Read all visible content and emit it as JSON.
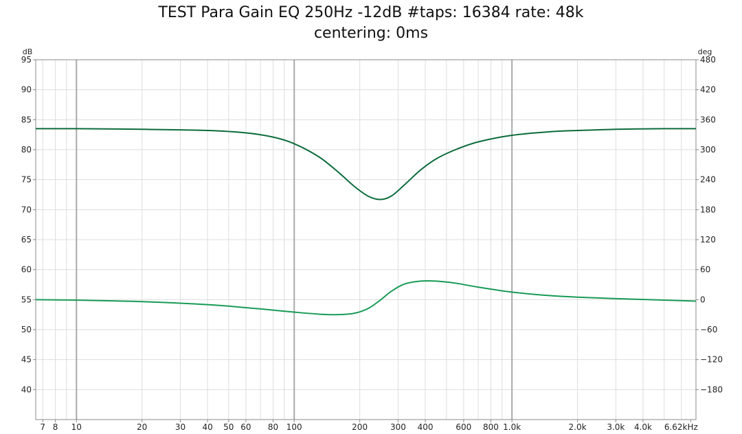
{
  "chart_data": {
    "type": "line",
    "title": "TEST Para Gain EQ 250Hz -12dB #taps: 16384 rate: 48k",
    "subtitle": "centering: 0ms",
    "x_scale": "log",
    "xlim": [
      6.5,
      7000
    ],
    "x_ticks": [
      {
        "v": 7,
        "label": "7"
      },
      {
        "v": 8,
        "label": "8"
      },
      {
        "v": 10,
        "label": "10"
      },
      {
        "v": 20,
        "label": "20"
      },
      {
        "v": 30,
        "label": "30"
      },
      {
        "v": 40,
        "label": "40"
      },
      {
        "v": 50,
        "label": "50"
      },
      {
        "v": 60,
        "label": "60"
      },
      {
        "v": 80,
        "label": "80"
      },
      {
        "v": 100,
        "label": "100"
      },
      {
        "v": 200,
        "label": "200"
      },
      {
        "v": 300,
        "label": "300"
      },
      {
        "v": 400,
        "label": "400"
      },
      {
        "v": 600,
        "label": "600"
      },
      {
        "v": 800,
        "label": "800"
      },
      {
        "v": 1000,
        "label": "1.0k"
      },
      {
        "v": 2000,
        "label": "2.0k"
      },
      {
        "v": 3000,
        "label": "3.0k"
      },
      {
        "v": 4000,
        "label": "4.0k"
      },
      {
        "v": 6620,
        "label": "6.62kHz"
      }
    ],
    "left_axis": {
      "unit": "dB",
      "range": [
        35,
        95
      ],
      "ticks": [
        95,
        90,
        85,
        80,
        75,
        70,
        65,
        60,
        55,
        50,
        45,
        40
      ]
    },
    "right_axis": {
      "unit": "deg",
      "range": [
        -240,
        480
      ],
      "ticks": [
        {
          "v": 480,
          "label": "480"
        },
        {
          "v": 420,
          "label": "420"
        },
        {
          "v": 360,
          "label": "360"
        },
        {
          "v": 300,
          "label": "300"
        },
        {
          "v": 240,
          "label": "240"
        },
        {
          "v": 180,
          "label": "180"
        },
        {
          "v": 120,
          "label": "120"
        },
        {
          "v": 60,
          "label": "60"
        },
        {
          "v": 0,
          "label": "0"
        },
        {
          "v": -60,
          "label": "−60"
        },
        {
          "v": -120,
          "label": "−120"
        },
        {
          "v": -180,
          "label": "−180"
        }
      ]
    },
    "grid": true,
    "series": [
      {
        "axis": "left",
        "color": "#0b6b3a",
        "x": [
          6.5,
          10,
          20,
          40,
          60,
          80,
          100,
          130,
          160,
          190,
          220,
          250,
          280,
          320,
          380,
          450,
          550,
          700,
          1000,
          1500,
          2000,
          3000,
          5000,
          7000
        ],
        "y": [
          83.5,
          83.5,
          83.4,
          83.2,
          82.8,
          82.1,
          81.0,
          78.8,
          76.2,
          73.8,
          72.2,
          71.7,
          72.3,
          74.1,
          76.6,
          78.5,
          80.0,
          81.3,
          82.4,
          83.0,
          83.2,
          83.4,
          83.5,
          83.5
        ]
      },
      {
        "axis": "right",
        "color": "#179a55",
        "x": [
          6.5,
          10,
          20,
          40,
          60,
          80,
          100,
          130,
          160,
          190,
          220,
          250,
          280,
          320,
          380,
          450,
          550,
          700,
          1000,
          1500,
          2000,
          3000,
          5000,
          7000
        ],
        "y": [
          0,
          -1,
          -4,
          -10,
          -16,
          -21,
          -25,
          -29,
          -30,
          -27,
          -17,
          0,
          17,
          31,
          37,
          37,
          33,
          25,
          15,
          8,
          5,
          2,
          -1,
          -3
        ]
      }
    ]
  }
}
